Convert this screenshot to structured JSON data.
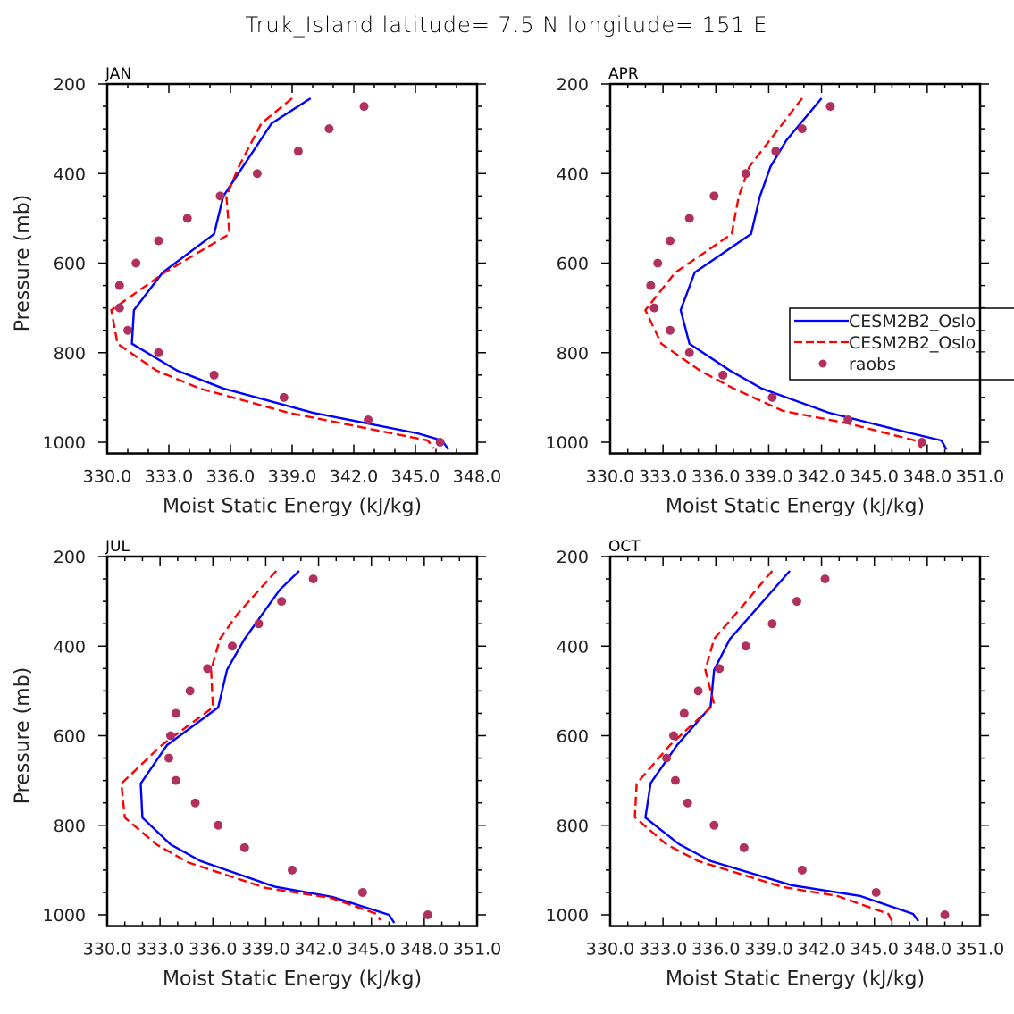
{
  "title": "Truk_Island  latitude= 7.5 N longitude= 151 E",
  "chart_data": [
    {
      "type": "line",
      "panel": "JAN",
      "title": "JAN",
      "xlabel": "Moist Static Energy (kJ/kg)",
      "ylabel": "Pressure (mb)",
      "xlim": [
        330,
        348
      ],
      "xticks": [
        "330.0",
        "333.0",
        "336.0",
        "339.0",
        "342.0",
        "345.0",
        "348.0"
      ],
      "ylim": [
        1025,
        200
      ],
      "yticks": [
        "200",
        "400",
        "600",
        "800",
        "1000"
      ],
      "legend": false,
      "series": [
        {
          "name": "CESM2B2_Oslo_",
          "style": "solid",
          "color": "#0000ff",
          "pressure": [
            232,
            288,
            385,
            451,
            535,
            621,
            705,
            780,
            840,
            880,
            934,
            980,
            996,
            1016
          ],
          "values": [
            339.9,
            338.0,
            336.6,
            335.65,
            335.2,
            332.7,
            331.3,
            331.2,
            333.4,
            335.65,
            340.0,
            345.1,
            346.3,
            346.6
          ]
        },
        {
          "name": "CESM2B2_Oslo_",
          "style": "dashed",
          "color": "#ff0000",
          "pressure": [
            232,
            288,
            385,
            451,
            535,
            621,
            705,
            780,
            840,
            880,
            934,
            996,
            1014
          ],
          "values": [
            339.0,
            337.5,
            336.4,
            335.8,
            335.95,
            332.8,
            330.2,
            330.5,
            332.4,
            334.5,
            338.8,
            345.6,
            345.9
          ]
        },
        {
          "name": "raobs",
          "style": "marker",
          "color": "#b03060",
          "pressure": [
            250,
            300,
            350,
            400,
            450,
            500,
            550,
            600,
            650,
            700,
            750,
            800,
            850,
            900,
            950,
            1000
          ],
          "values": [
            342.5,
            340.8,
            339.3,
            337.3,
            335.5,
            333.9,
            332.5,
            331.4,
            330.6,
            330.6,
            331.0,
            332.5,
            335.2,
            338.6,
            342.7,
            346.2
          ]
        }
      ]
    },
    {
      "type": "line",
      "panel": "APR",
      "title": "APR",
      "xlabel": "Moist Static Energy (kJ/kg)",
      "ylabel": "",
      "xlim": [
        330,
        351
      ],
      "xticks": [
        "330.0",
        "333.0",
        "336.0",
        "339.0",
        "342.0",
        "345.0",
        "348.0",
        "351.0"
      ],
      "ylim": [
        1025,
        200
      ],
      "yticks": [
        "200",
        "400",
        "600",
        "800",
        "1000"
      ],
      "legend": true,
      "legend_position": "right",
      "legend_entries": [
        "CESM2B2_Oslo_",
        "CESM2B2_Oslo_",
        "raobs"
      ],
      "series": [
        {
          "name": "CESM2B2_Oslo_",
          "style": "solid",
          "color": "#0000ff",
          "pressure": [
            232,
            326,
            385,
            451,
            535,
            621,
            705,
            780,
            840,
            880,
            934,
            980,
            996,
            1016
          ],
          "values": [
            342.0,
            340.0,
            339.1,
            338.5,
            338.0,
            334.8,
            334.0,
            334.5,
            336.8,
            338.6,
            342.4,
            347.1,
            348.8,
            349.1
          ]
        },
        {
          "name": "CESM2B2_Oslo_",
          "style": "dashed",
          "color": "#ff0000",
          "pressure": [
            232,
            385,
            451,
            535,
            621,
            705,
            780,
            840,
            880,
            930,
            958,
            996,
            1014
          ],
          "values": [
            340.9,
            337.9,
            337.3,
            336.9,
            333.7,
            332.0,
            332.9,
            335.1,
            337.0,
            339.8,
            343.5,
            347.3,
            347.7
          ]
        },
        {
          "name": "raobs",
          "style": "marker",
          "color": "#b03060",
          "pressure": [
            250,
            300,
            350,
            400,
            450,
            500,
            550,
            600,
            650,
            700,
            750,
            800,
            850,
            900,
            950,
            1000
          ],
          "values": [
            342.5,
            340.9,
            339.4,
            337.7,
            335.9,
            334.5,
            333.4,
            332.7,
            332.3,
            332.5,
            333.4,
            334.5,
            336.4,
            339.2,
            343.5,
            347.7
          ]
        }
      ]
    },
    {
      "type": "line",
      "panel": "JUL",
      "title": "JUL",
      "xlabel": "Moist Static Energy (kJ/kg)",
      "ylabel": "Pressure (mb)",
      "xlim": [
        330,
        351
      ],
      "xticks": [
        "330.0",
        "333.0",
        "336.0",
        "339.0",
        "342.0",
        "345.0",
        "348.0",
        "351.0"
      ],
      "ylim": [
        1025,
        200
      ],
      "yticks": [
        "200",
        "400",
        "600",
        "800",
        "1000"
      ],
      "legend": false,
      "series": [
        {
          "name": "CESM2B2_Oslo_",
          "style": "solid",
          "color": "#0000ff",
          "pressure": [
            232,
            274,
            384,
            453,
            537,
            621,
            707,
            783,
            843,
            880,
            937,
            960,
            1000,
            1018
          ],
          "values": [
            340.9,
            339.8,
            337.8,
            336.8,
            336.3,
            333.4,
            331.9,
            332.0,
            333.6,
            335.3,
            339.5,
            342.8,
            346.0,
            346.3
          ]
        },
        {
          "name": "CESM2B2_Oslo_",
          "style": "dashed",
          "color": "#ff0000",
          "pressure": [
            232,
            328,
            384,
            453,
            537,
            621,
            707,
            783,
            843,
            883,
            940,
            962,
            998,
            1012
          ],
          "values": [
            339.6,
            337.4,
            336.4,
            335.9,
            336.0,
            333.1,
            330.8,
            331.0,
            332.8,
            334.6,
            339.0,
            342.7,
            345.3,
            345.5
          ]
        },
        {
          "name": "raobs",
          "style": "marker",
          "color": "#b03060",
          "pressure": [
            250,
            300,
            350,
            400,
            450,
            500,
            550,
            600,
            650,
            700,
            750,
            800,
            850,
            900,
            950,
            1000
          ],
          "values": [
            341.7,
            339.9,
            338.6,
            337.1,
            335.7,
            334.7,
            333.9,
            333.6,
            333.5,
            333.9,
            335.0,
            336.3,
            337.8,
            340.5,
            344.5,
            348.2
          ]
        }
      ]
    },
    {
      "type": "line",
      "panel": "OCT",
      "title": "OCT",
      "xlabel": "Moist Static Energy (kJ/kg)",
      "ylabel": "",
      "xlim": [
        330,
        351
      ],
      "xticks": [
        "330.0",
        "333.0",
        "336.0",
        "339.0",
        "342.0",
        "345.0",
        "348.0",
        "351.0"
      ],
      "ylim": [
        1025,
        200
      ],
      "yticks": [
        "200",
        "400",
        "600",
        "800",
        "1000"
      ],
      "legend": false,
      "series": [
        {
          "name": "CESM2B2_Oslo_",
          "style": "solid",
          "color": "#0000ff",
          "pressure": [
            232,
            384,
            453,
            535,
            621,
            706,
            783,
            842,
            880,
            934,
            958,
            998,
            1014
          ],
          "values": [
            340.2,
            336.8,
            335.9,
            335.7,
            333.8,
            332.3,
            332.0,
            333.9,
            335.7,
            340.3,
            344.2,
            347.2,
            347.5
          ]
        },
        {
          "name": "CESM2B2_Oslo_",
          "style": "dashed",
          "color": "#ff0000",
          "pressure": [
            232,
            311,
            384,
            453,
            530,
            621,
            707,
            782,
            843,
            880,
            938,
            958,
            998,
            1014
          ],
          "values": [
            339.2,
            337.5,
            335.9,
            335.4,
            335.9,
            333.4,
            331.5,
            331.4,
            333.2,
            335.0,
            339.8,
            342.9,
            345.8,
            346.0
          ]
        },
        {
          "name": "raobs",
          "style": "marker",
          "color": "#b03060",
          "pressure": [
            250,
            300,
            350,
            400,
            450,
            500,
            550,
            600,
            650,
            700,
            750,
            800,
            850,
            900,
            950,
            1000
          ],
          "values": [
            342.2,
            340.6,
            339.2,
            337.7,
            336.2,
            335.0,
            334.2,
            333.6,
            333.2,
            333.7,
            334.4,
            335.9,
            337.6,
            340.9,
            345.1,
            349.0
          ]
        }
      ]
    }
  ]
}
